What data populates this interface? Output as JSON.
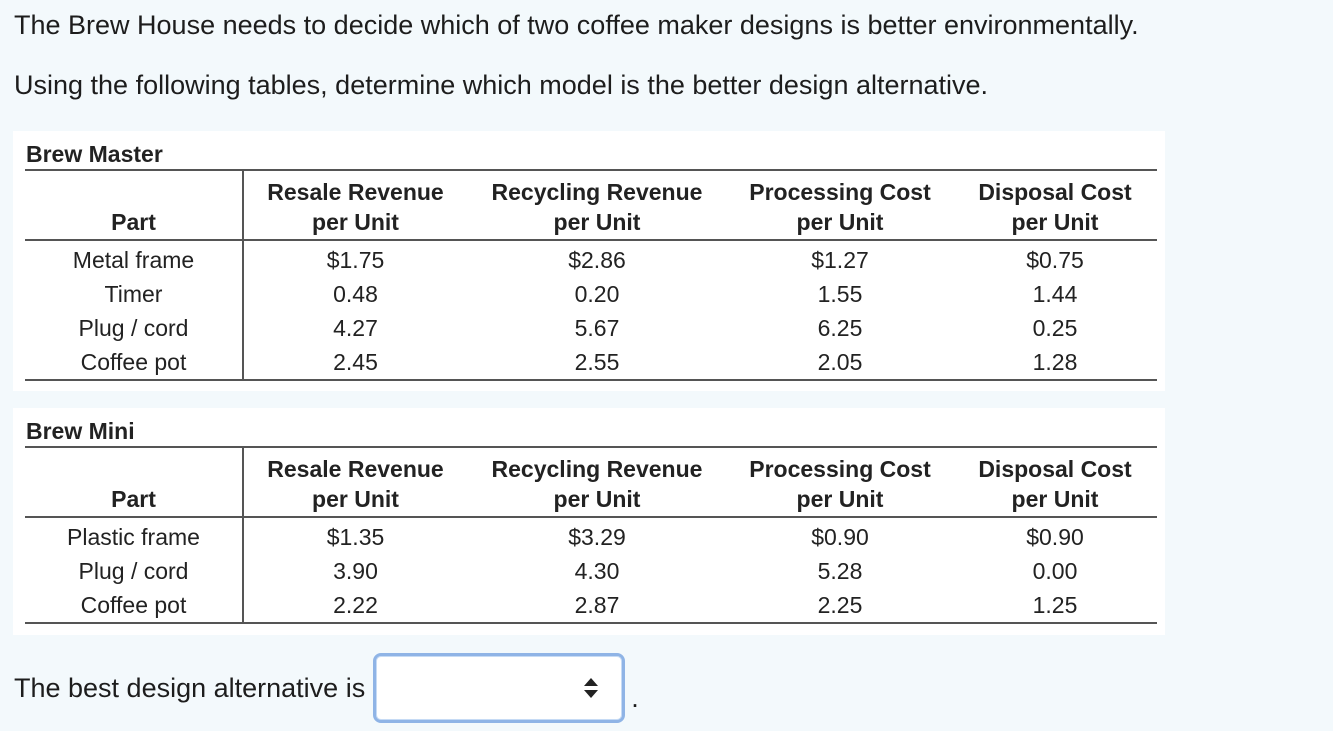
{
  "question": {
    "line1": "The Brew House needs to decide which of two coffee maker designs is better environmentally.",
    "line2": "Using the following tables, determine which model is the better design alternative."
  },
  "headers": {
    "part": "Part",
    "resale_1": "Resale Revenue",
    "resale_2": "per Unit",
    "recycling_1": "Recycling Revenue",
    "recycling_2": "per Unit",
    "processing_1": "Processing Cost",
    "processing_2": "per Unit",
    "disposal_1": "Disposal Cost",
    "disposal_2": "per Unit"
  },
  "brew_master": {
    "title": "Brew Master",
    "rows": [
      {
        "part": "Metal frame",
        "resale": "$1.75",
        "recycling": "$2.86",
        "processing": "$1.27",
        "disposal": "$0.75"
      },
      {
        "part": "Timer",
        "resale": "0.48",
        "recycling": "0.20",
        "processing": "1.55",
        "disposal": "1.44"
      },
      {
        "part": "Plug / cord",
        "resale": "4.27",
        "recycling": "5.67",
        "processing": "6.25",
        "disposal": "0.25"
      },
      {
        "part": "Coffee pot",
        "resale": "2.45",
        "recycling": "2.55",
        "processing": "2.05",
        "disposal": "1.28"
      }
    ]
  },
  "brew_mini": {
    "title": "Brew Mini",
    "rows": [
      {
        "part": "Plastic frame",
        "resale": "$1.35",
        "recycling": "$3.29",
        "processing": "$0.90",
        "disposal": "$0.90"
      },
      {
        "part": "Plug / cord",
        "resale": "3.90",
        "recycling": "4.30",
        "processing": "5.28",
        "disposal": "0.00"
      },
      {
        "part": "Coffee pot",
        "resale": "2.22",
        "recycling": "2.87",
        "processing": "2.25",
        "disposal": "1.25"
      }
    ]
  },
  "answer": {
    "prompt": "The best design alternative is",
    "selected_value": "",
    "suffix": "."
  },
  "icons": {
    "select_arrows": "up-down-arrows-icon"
  },
  "colors": {
    "page_background": "#f3f9fc",
    "select_border": "#8fb4e6"
  }
}
